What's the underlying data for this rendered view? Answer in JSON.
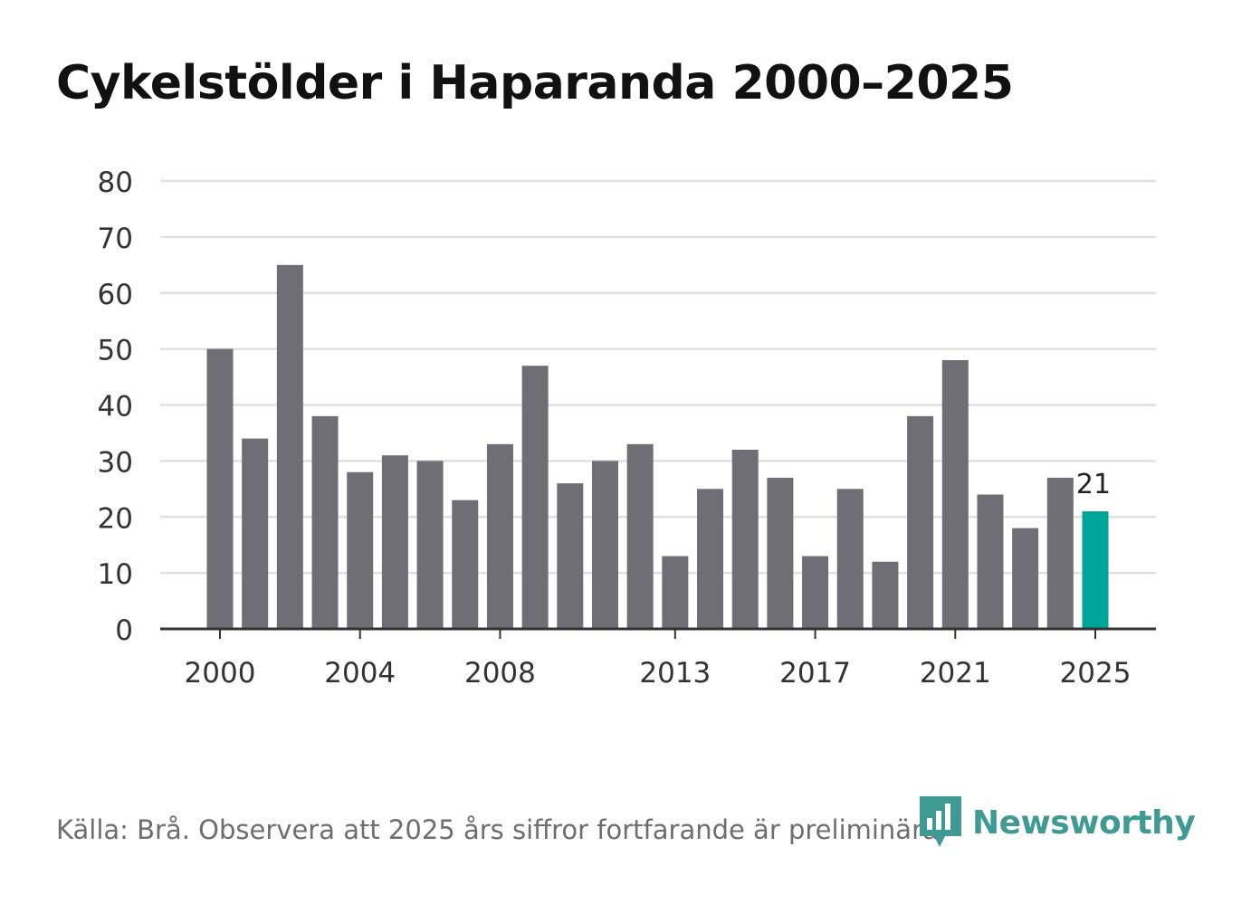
{
  "title": "Cykelstölder i Haparanda 2000–2025",
  "source": "Källa: Brå. Observera att 2025 års siffror fortfarande är preliminära.",
  "brand": {
    "name": "Newsworthy",
    "color": "#3f9a93",
    "icon": "newsworthy-logo-icon"
  },
  "colors": {
    "bar": "#6e6e74",
    "highlight": "#00a59a",
    "grid": "#e0e0e0",
    "axis": "#333333",
    "text": "#333333"
  },
  "chart_data": {
    "type": "bar",
    "title": "Cykelstölder i Haparanda 2000–2025",
    "xlabel": "",
    "ylabel": "",
    "ylim": [
      0,
      80
    ],
    "yticks": [
      0,
      10,
      20,
      30,
      40,
      50,
      60,
      70,
      80
    ],
    "xtick_labels": [
      "2000",
      "2004",
      "2008",
      "2013",
      "2017",
      "2021",
      "2025"
    ],
    "grid": true,
    "categories": [
      "2000",
      "2001",
      "2002",
      "2003",
      "2004",
      "2005",
      "2006",
      "2007",
      "2008",
      "2009",
      "2010",
      "2011",
      "2012",
      "2013",
      "2014",
      "2015",
      "2016",
      "2017",
      "2018",
      "2019",
      "2020",
      "2021",
      "2022",
      "2023",
      "2024",
      "2025"
    ],
    "values": [
      50,
      34,
      65,
      38,
      28,
      31,
      30,
      23,
      33,
      47,
      26,
      30,
      33,
      13,
      25,
      32,
      27,
      13,
      25,
      12,
      38,
      48,
      24,
      18,
      27,
      21
    ],
    "highlight_index": 25,
    "annotations": [
      {
        "category": "2025",
        "label": "21"
      }
    ]
  }
}
